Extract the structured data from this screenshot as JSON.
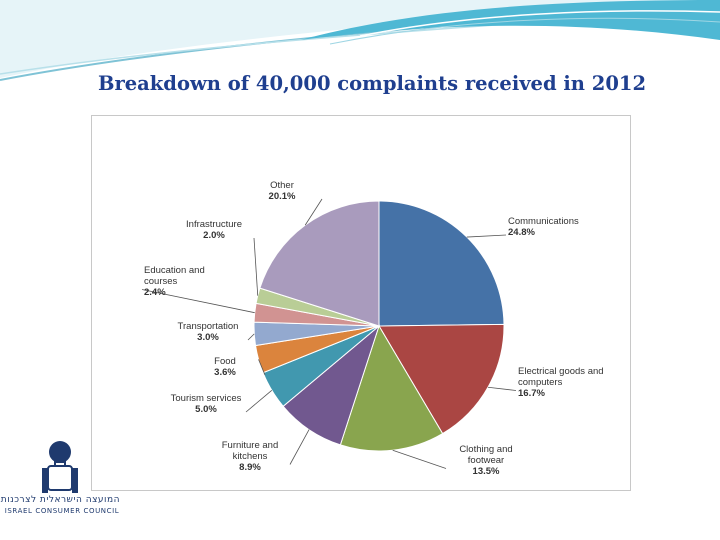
{
  "slide": {
    "title": "Breakdown of 40,000 complaints received in 2012"
  },
  "logo": {
    "icon": "person-with-bag-icon",
    "text_hebrew": "המועצה הישראלית לצרכנות",
    "text_english": "ISRAEL CONSUMER COUNCIL"
  },
  "chart_data": {
    "type": "pie",
    "title": "",
    "unit": "%",
    "slices": [
      {
        "label": "Communications",
        "value": 24.8,
        "value_label": "24.8%",
        "color": "#4572a7"
      },
      {
        "label": "Electrical goods and computers",
        "value": 16.7,
        "value_label": "16.7%",
        "color": "#aa4643"
      },
      {
        "label": "Clothing and footwear",
        "value": 13.5,
        "value_label": "13.5%",
        "color": "#89a54e"
      },
      {
        "label": "Furniture and kitchens",
        "value": 8.9,
        "value_label": "8.9%",
        "color": "#71588f"
      },
      {
        "label": "Tourism services",
        "value": 5.0,
        "value_label": "5.0%",
        "color": "#4198af"
      },
      {
        "label": "Food",
        "value": 3.6,
        "value_label": "3.6%",
        "color": "#db843d"
      },
      {
        "label": "Transportation",
        "value": 3.0,
        "value_label": "3.0%",
        "color": "#93a9cf"
      },
      {
        "label": "Education and courses",
        "value": 2.4,
        "value_label": "2.4%",
        "color": "#d19392"
      },
      {
        "label": "Infrastructure",
        "value": 2.0,
        "value_label": "2.0%",
        "color": "#b9cd96"
      },
      {
        "label": "Other",
        "value": 20.1,
        "value_label": "20.1%",
        "color": "#a99bbd"
      }
    ]
  }
}
